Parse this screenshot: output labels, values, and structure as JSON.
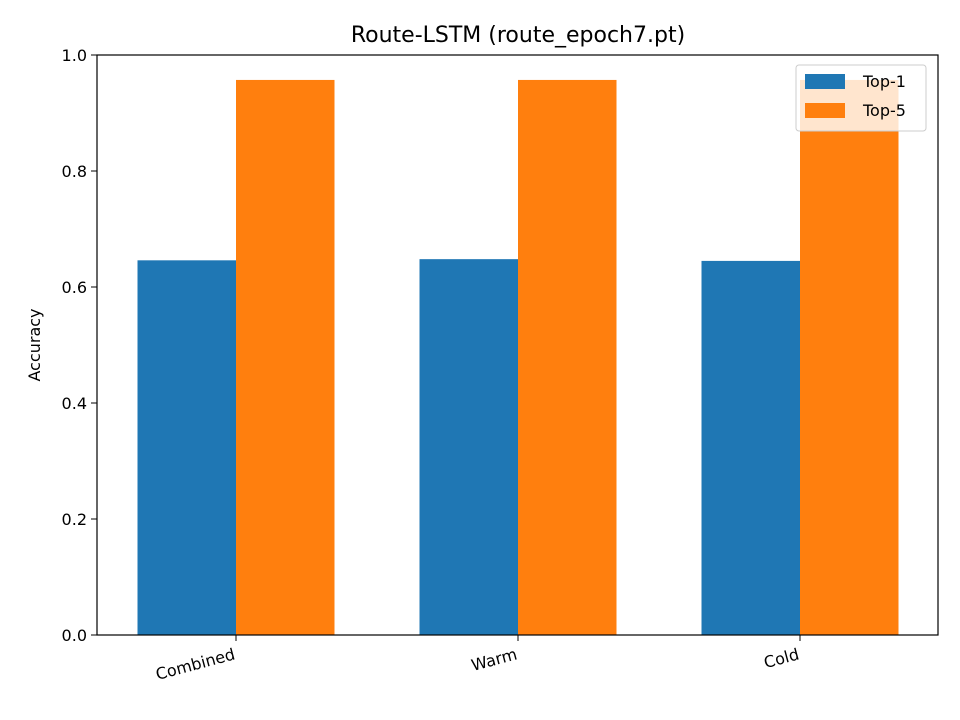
{
  "chart_data": {
    "type": "bar",
    "title": "Route-LSTM (route_epoch7.pt)",
    "xlabel": "",
    "ylabel": "Accuracy",
    "ylim": [
      0,
      1.0
    ],
    "yticks": [
      "0.0",
      "0.2",
      "0.4",
      "0.6",
      "0.8",
      "1.0"
    ],
    "categories": [
      "Combined",
      "Warm",
      "Cold"
    ],
    "series": [
      {
        "name": "Top-1",
        "color": "#1f77b4",
        "values": [
          0.646,
          0.648,
          0.645
        ]
      },
      {
        "name": "Top-5",
        "color": "#ff7f0e",
        "values": [
          0.957,
          0.957,
          0.957
        ]
      }
    ],
    "legend": "top-right",
    "grid": false
  }
}
